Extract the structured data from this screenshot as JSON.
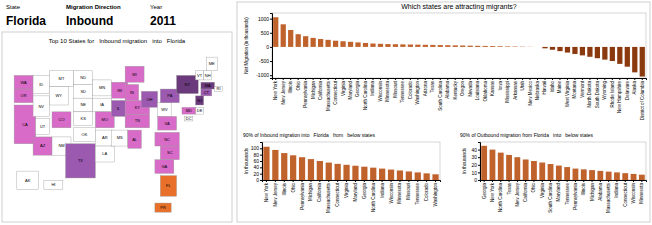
{
  "chart_data": [
    {
      "type": "map",
      "title": "Top 10 States for   Inbound migration   into   Florida",
      "annotations": [
        "State",
        "Florida",
        "Migration Direction",
        "Inbound",
        "Year",
        "2011"
      ],
      "categories": [
        "WA",
        "OR",
        "CA",
        "ID",
        "MT",
        "WY",
        "NV",
        "UT",
        "CO",
        "AZ",
        "NM",
        "ND",
        "SD",
        "NE",
        "KS",
        "OK",
        "TX",
        "MN",
        "IA",
        "MO",
        "AR",
        "LA",
        "WI",
        "IL",
        "MS",
        "AL",
        "TN",
        "KY",
        "IN",
        "MI",
        "OH",
        "WV",
        "VA",
        "NC",
        "SC",
        "GA",
        "FL",
        "PA",
        "NY",
        "VT",
        "NH",
        "ME",
        "MA",
        "RI",
        "CT",
        "NJ",
        "DE",
        "MD",
        "DC",
        "AK",
        "HI",
        "PR"
      ],
      "colors": [
        "#D96BC8",
        "#D96BC8",
        "#D96BC8",
        "#FFFFFF",
        "#FFFFFF",
        "#FFFFFF",
        "#FFFFFF",
        "#FFFFFF",
        "#D96BC8",
        "#D96BC8",
        "#FFFFFF",
        "#FFFFFF",
        "#FFFFFF",
        "#FFFFFF",
        "#FFFFFF",
        "#FFFFFF",
        "#9B59B0",
        "#FFFFFF",
        "#FFFFFF",
        "#D96BC8",
        "#FFFFFF",
        "#FFFFFF",
        "#D96BC8",
        "#9B59B0",
        "#FFFFFF",
        "#D96BC8",
        "#D96BC8",
        "#D96BC8",
        "#D96BC8",
        "#D96BC8",
        "#9B59B0",
        "#FFFFFF",
        "#D96BC8",
        "#D96BC8",
        "#D96BC8",
        "#D96BC8",
        "#E8702A",
        "#9B59B0",
        "#6B3A7D",
        "#FFFFFF",
        "#FFFFFF",
        "#FFFFFF",
        "#6B3A7D",
        "#FFFFFF",
        "#9B59B0",
        "#6B3A7D",
        "#FFFFFF",
        "#D96BC8",
        "#FFFFFF",
        "#FFFFFF",
        "#FFFFFF",
        "#E8702A"
      ]
    },
    {
      "type": "bar",
      "title": "Which states are attracting migrants?",
      "ylabel": "Net Migration (in thousands)",
      "categories": [
        "New York",
        "New Jersey",
        "Illinois",
        "Ohio",
        "Pennsylvania",
        "Michigan",
        "California",
        "Massachusetts",
        "Connecticut",
        "Virginia",
        "Maryland",
        "Georgia",
        "North Carolina",
        "Indiana",
        "Wisconsin",
        "Minnesota",
        "Missouri",
        "Tennessee",
        "Colorado",
        "Washington",
        "Arizona",
        "Texas",
        "South Carolina",
        "Alabama",
        "Kentucky",
        "Oregon",
        "Nevada",
        "Louisiana",
        "Oklahoma",
        "Kansas",
        "Iowa",
        "Mississippi",
        "Arkansas",
        "Utah",
        "New Mexico",
        "Nebraska",
        "Hawaii",
        "Idaho",
        "Maine",
        "West Virginia",
        "Montana",
        "Vermont",
        "North Dakota",
        "South Dakota",
        "Wyoming",
        "Rhode Island",
        "New Hampshire",
        "Delaware",
        "Alaska",
        "District of Columbia"
      ],
      "values": [
        1050,
        800,
        600,
        450,
        380,
        320,
        280,
        250,
        220,
        200,
        180,
        160,
        140,
        120,
        110,
        100,
        95,
        90,
        85,
        80,
        75,
        70,
        65,
        60,
        55,
        50,
        45,
        40,
        35,
        30,
        25,
        20,
        15,
        10,
        5,
        0,
        -50,
        -100,
        -150,
        -200,
        -250,
        -300,
        -350,
        -400,
        -450,
        -500,
        -600,
        -700,
        -900,
        -1050
      ],
      "colors": [
        "#C0622B",
        "#C0622B",
        "#C0622B",
        "#C0622B",
        "#C0622B",
        "#C0622B",
        "#C0622B",
        "#C0622B",
        "#C0622B",
        "#C0622B",
        "#C0622B",
        "#C0622B",
        "#C0622B",
        "#C0622B",
        "#C0622B",
        "#C0622B",
        "#C0622B",
        "#C0622B",
        "#C0622B",
        "#C0622B",
        "#C0622B",
        "#C0622B",
        "#C0622B",
        "#C0622B",
        "#C0622B",
        "#C0622B",
        "#C0622B",
        "#C0622B",
        "#C0622B",
        "#C0622B",
        "#C0622B",
        "#C0622B",
        "#C0622B",
        "#C0622B",
        "#C0622B",
        "#C0622B",
        "#8B3A0F",
        "#8B3A0F",
        "#8B3A0F",
        "#8B3A0F",
        "#8B3A0F",
        "#8B3A0F",
        "#8B3A0F",
        "#8B3A0F",
        "#8B3A0F",
        "#8B3A0F",
        "#8B3A0F",
        "#8B3A0F",
        "#8B3A0F",
        "#8B3A0F"
      ],
      "ylim": [
        -1100,
        1200
      ],
      "yticks": [
        -1000,
        -500,
        0,
        500,
        1000
      ]
    },
    {
      "type": "bar",
      "title": "90% of Inbound migration into   Florida   from   below states",
      "ylabel": "In thousands",
      "categories": [
        "New York",
        "New Jersey",
        "Illinois",
        "Ohio",
        "Pennsylvania",
        "Michigan",
        "California",
        "Massachusetts",
        "Connecticut",
        "Virginia",
        "Maryland",
        "Georgia",
        "North Carolina",
        "Indiana",
        "Wisconsin",
        "Minnesota",
        "Missouri",
        "Tennessee",
        "Colorado",
        "Washington"
      ],
      "values": [
        105,
        95,
        85,
        78,
        72,
        66,
        60,
        55,
        51,
        48,
        45,
        42,
        39,
        36,
        33,
        30,
        27,
        24,
        21,
        18
      ],
      "color": "#C0622B",
      "ylim": [
        0,
        120
      ],
      "yticks": [
        0,
        20,
        40,
        60,
        80,
        100
      ]
    },
    {
      "type": "bar",
      "title": "90% of Outbound migration from Florida   into   below states",
      "ylabel": "In thousands",
      "categories": [
        "Georgia",
        "New York",
        "North Carolina",
        "Texas",
        "New Jersey",
        "California",
        "Ohio",
        "Virginia",
        "South Carolina",
        "Maryland",
        "Tennessee",
        "Pennsylvania",
        "Illinois",
        "Michigan",
        "Alabama",
        "Massachusetts",
        "Indiana",
        "Connecticut",
        "Wisconsin",
        "Minnesota"
      ],
      "values": [
        45,
        40,
        36,
        33,
        30,
        27,
        25,
        23,
        21,
        19,
        17,
        15,
        14,
        13,
        12,
        11,
        10,
        9,
        8,
        7
      ],
      "color": "#C0622B",
      "ylim": [
        0,
        50
      ],
      "yticks": [
        0,
        10,
        20,
        30,
        40
      ]
    }
  ]
}
